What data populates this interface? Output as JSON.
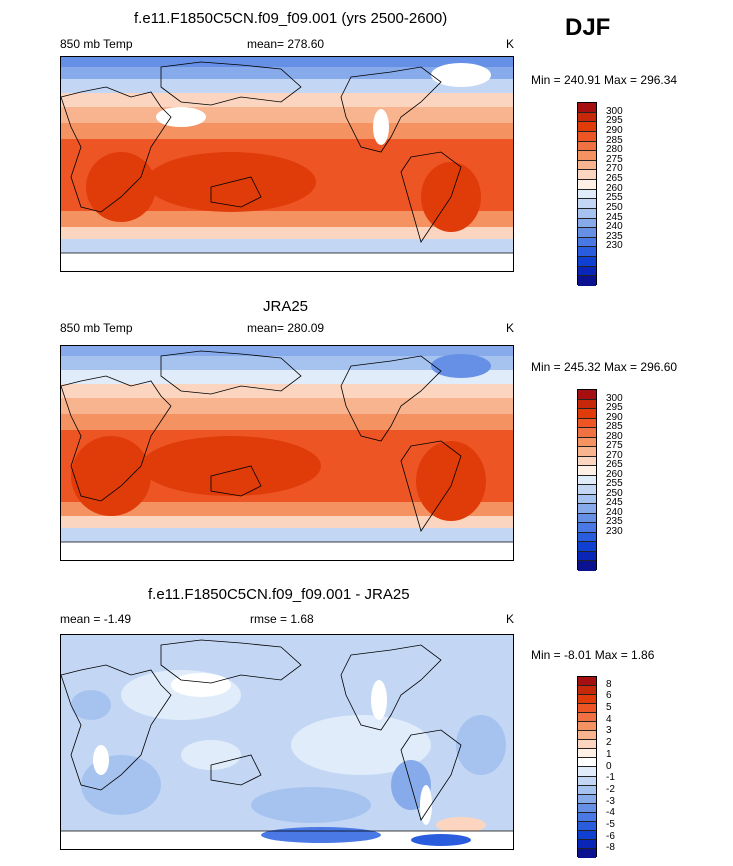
{
  "season": "DJF",
  "units_common": "K",
  "colors_abs": [
    "#a50f0f",
    "#c8280a",
    "#e03c0a",
    "#ee5524",
    "#f07242",
    "#f49262",
    "#f8b48e",
    "#fbd5bf",
    "#fff0e6",
    "#e0ecfa",
    "#c3d7f5",
    "#a6c3f0",
    "#87aaeb",
    "#6690e6",
    "#4a78e4",
    "#2a5ddd",
    "#1040d2",
    "#0a26b8",
    "#0a1290"
  ],
  "colors_diff": [
    "#a50f0f",
    "#c8280a",
    "#e03c0a",
    "#ee5524",
    "#f07242",
    "#f49262",
    "#f8b48e",
    "#fbd5bf",
    "#fff0e6",
    "#ffffff",
    "#e0ecfa",
    "#c3d7f5",
    "#a6c3f0",
    "#87aaeb",
    "#6690e6",
    "#4a78e4",
    "#2a5ddd",
    "#1040d2",
    "#0a26b8",
    "#0a1290"
  ],
  "panels": [
    {
      "title": "f.e11.F1850C5CN.f09_f09.001 (yrs 2500-2600)",
      "left_label": "850 mb Temp",
      "mid_label": "mean= 278.60",
      "units": "K",
      "minmax": "Min = 240.91 Max = 296.34",
      "ticks": [
        "300",
        "295",
        "290",
        "285",
        "280",
        "275",
        "270",
        "265",
        "260",
        "255",
        "250",
        "245",
        "240",
        "235",
        "230"
      ]
    },
    {
      "title": "JRA25",
      "left_label": "850 mb Temp",
      "mid_label": "mean= 280.09",
      "units": "K",
      "minmax": "Min = 245.32 Max = 296.60",
      "ticks": [
        "300",
        "295",
        "290",
        "285",
        "280",
        "275",
        "270",
        "265",
        "260",
        "255",
        "250",
        "245",
        "240",
        "235",
        "230"
      ]
    },
    {
      "title": "f.e11.F1850C5CN.f09_f09.001 - JRA25",
      "left_label": "mean =  -1.49",
      "mid_label": "rmse =   1.68",
      "units": "K",
      "minmax": "Min =  -8.01 Max =   1.86",
      "ticks": [
        "8",
        "6",
        "5",
        "4",
        "3",
        "2",
        "1",
        "0",
        "-1",
        "-2",
        "-3",
        "-4",
        "-5",
        "-6",
        "-8"
      ]
    }
  ]
}
